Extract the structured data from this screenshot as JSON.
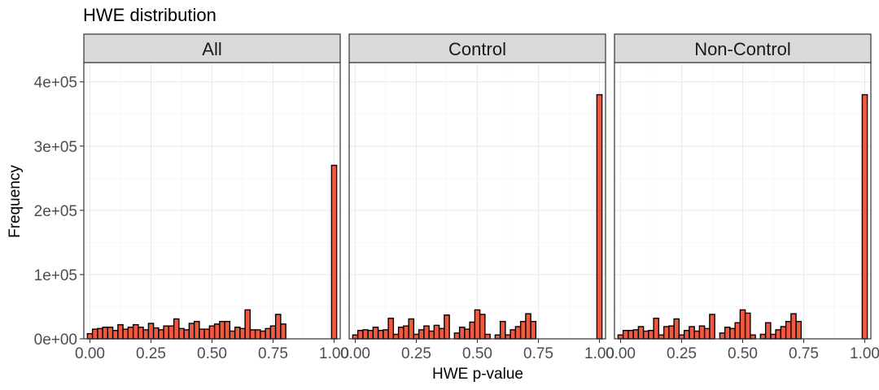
{
  "figure": {
    "title": "HWE distribution",
    "xlabel": "HWE p-value",
    "ylabel": "Frequency"
  },
  "colors": {
    "bar_fill": "#f0593f",
    "bar_stroke": "#000000",
    "strip_fill": "#d9d9d9",
    "panel_border": "#333333",
    "grid_major": "#ebebeb",
    "grid_minor": "#f5f5f5"
  },
  "chart_data": [
    {
      "type": "bar",
      "panel": "All",
      "xlim": [
        -0.025,
        1.025
      ],
      "ylim": [
        0,
        430000
      ],
      "x_ticks": [
        "0.00",
        "0.25",
        "0.50",
        "0.75",
        "1.00"
      ],
      "x_tick_values": [
        0,
        0.25,
        0.5,
        0.75,
        1
      ],
      "y_ticks": [
        "0e+00",
        "1e+05",
        "2e+05",
        "3e+05",
        "4e+05"
      ],
      "y_tick_values": [
        0,
        100000,
        200000,
        300000,
        400000
      ],
      "grid": true,
      "bin_width": 0.0208,
      "bin_centers": [
        0.0,
        0.0208,
        0.0417,
        0.0625,
        0.0833,
        0.1042,
        0.125,
        0.1458,
        0.1667,
        0.1875,
        0.2083,
        0.2292,
        0.25,
        0.2708,
        0.2917,
        0.3125,
        0.3333,
        0.3542,
        0.375,
        0.3958,
        0.4167,
        0.4375,
        0.4583,
        0.4792,
        0.5,
        0.5208,
        0.5417,
        0.5625,
        0.5833,
        0.6042,
        0.625,
        0.6458,
        0.6667,
        0.6875,
        0.7083,
        0.7292,
        0.75,
        0.7708,
        0.7917,
        0.8125,
        0.8333,
        0.8542,
        0.875,
        0.8958,
        0.9167,
        0.9375,
        0.9583,
        0.9792,
        1.0
      ],
      "values": [
        8000,
        15000,
        16000,
        18000,
        18000,
        13000,
        22000,
        15000,
        18000,
        22000,
        18000,
        14000,
        24000,
        17000,
        14000,
        20000,
        20000,
        31000,
        16000,
        14000,
        24000,
        27000,
        15000,
        15000,
        20000,
        23000,
        27000,
        27000,
        12000,
        18000,
        16000,
        45000,
        14000,
        14000,
        12000,
        16000,
        20000,
        38000,
        23000,
        0,
        0,
        0,
        0,
        0,
        0,
        0,
        0,
        0,
        270000
      ]
    },
    {
      "type": "bar",
      "panel": "Control",
      "xlim": [
        -0.025,
        1.025
      ],
      "ylim": [
        0,
        430000
      ],
      "x_ticks": [
        "0.00",
        "0.25",
        "0.50",
        "0.75",
        "1.00"
      ],
      "x_tick_values": [
        0,
        0.25,
        0.5,
        0.75,
        1
      ],
      "y_ticks": [
        "0e+00",
        "1e+05",
        "2e+05",
        "3e+05",
        "4e+05"
      ],
      "y_tick_values": [
        0,
        100000,
        200000,
        300000,
        400000
      ],
      "grid": true,
      "bin_width": 0.0208,
      "bin_centers": [
        0.0,
        0.0208,
        0.0417,
        0.0625,
        0.0833,
        0.1042,
        0.125,
        0.1458,
        0.1667,
        0.1875,
        0.2083,
        0.2292,
        0.25,
        0.2708,
        0.2917,
        0.3125,
        0.3333,
        0.3542,
        0.375,
        0.3958,
        0.4167,
        0.4375,
        0.4583,
        0.4792,
        0.5,
        0.5208,
        0.5417,
        0.5625,
        0.5833,
        0.6042,
        0.625,
        0.6458,
        0.6667,
        0.6875,
        0.7083,
        0.7292,
        0.75,
        0.7708,
        0.7917,
        0.8125,
        0.8333,
        0.8542,
        0.875,
        0.8958,
        0.9167,
        0.9375,
        0.9583,
        0.9792,
        1.0
      ],
      "values": [
        6000,
        13000,
        14000,
        13000,
        18000,
        13000,
        14000,
        32000,
        7000,
        18000,
        20000,
        31000,
        7000,
        14000,
        20000,
        12000,
        21000,
        16000,
        37000,
        0,
        9000,
        18000,
        15000,
        26000,
        45000,
        38000,
        7000,
        0,
        6000,
        27000,
        6000,
        14000,
        19000,
        27000,
        39000,
        27000,
        0,
        0,
        0,
        0,
        0,
        0,
        0,
        0,
        0,
        0,
        0,
        0,
        380000
      ]
    },
    {
      "type": "bar",
      "panel": "Non-Control",
      "xlim": [
        -0.025,
        1.025
      ],
      "ylim": [
        0,
        430000
      ],
      "x_ticks": [
        "0.00",
        "0.25",
        "0.50",
        "0.75",
        "1.00"
      ],
      "x_tick_values": [
        0,
        0.25,
        0.5,
        0.75,
        1
      ],
      "y_ticks": [
        "0e+00",
        "1e+05",
        "2e+05",
        "3e+05",
        "4e+05"
      ],
      "y_tick_values": [
        0,
        100000,
        200000,
        300000,
        400000
      ],
      "grid": true,
      "bin_width": 0.0208,
      "bin_centers": [
        0.0,
        0.0208,
        0.0417,
        0.0625,
        0.0833,
        0.1042,
        0.125,
        0.1458,
        0.1667,
        0.1875,
        0.2083,
        0.2292,
        0.25,
        0.2708,
        0.2917,
        0.3125,
        0.3333,
        0.3542,
        0.375,
        0.3958,
        0.4167,
        0.4375,
        0.4583,
        0.4792,
        0.5,
        0.5208,
        0.5417,
        0.5625,
        0.5833,
        0.6042,
        0.625,
        0.6458,
        0.6667,
        0.6875,
        0.7083,
        0.7292,
        0.75,
        0.7708,
        0.7917,
        0.8125,
        0.8333,
        0.8542,
        0.875,
        0.8958,
        0.9167,
        0.9375,
        0.9583,
        0.9792,
        1.0
      ],
      "values": [
        6000,
        13000,
        13000,
        14000,
        19000,
        12000,
        13000,
        32000,
        6000,
        19000,
        20000,
        31000,
        6000,
        13000,
        19000,
        12000,
        20000,
        16000,
        38000,
        0,
        9000,
        18000,
        16000,
        25000,
        45000,
        40000,
        6000,
        0,
        7000,
        25000,
        7000,
        14000,
        19000,
        27000,
        39000,
        27000,
        0,
        0,
        0,
        0,
        0,
        0,
        0,
        0,
        0,
        0,
        0,
        0,
        380000
      ]
    }
  ]
}
